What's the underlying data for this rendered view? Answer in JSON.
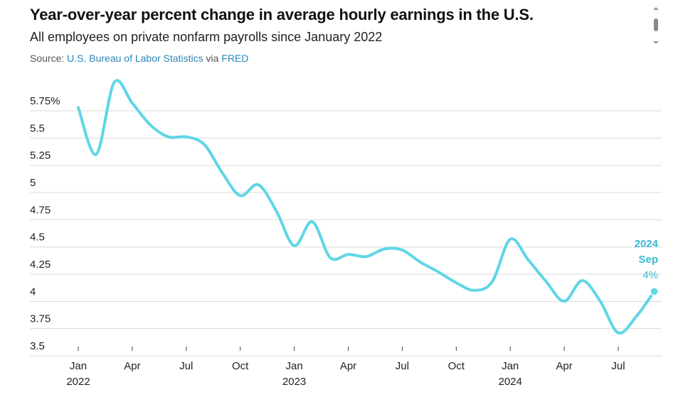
{
  "header": {
    "title": "Year-over-year percent change in average hourly earnings in the U.S.",
    "subtitle": "All employees on private nonfarm payrolls since January 2022",
    "source_prefix": "Source: ",
    "source_name": "U.S. Bureau of Labor Statistics",
    "source_via": " via ",
    "source_link2": "FRED"
  },
  "icons": {
    "menu": "vertical-scroll-menu-icon"
  },
  "colors": {
    "line": "#5fd6e6",
    "grid": "#d9d9d9",
    "accent": "#3ab9d4",
    "link": "#2a86b8"
  },
  "chart_data": {
    "type": "line",
    "ylim": [
      3.5,
      5.92
    ],
    "yticks": [
      {
        "value": 5.75,
        "label": "5.75%"
      },
      {
        "value": 5.5,
        "label": "5.5"
      },
      {
        "value": 5.25,
        "label": "5.25"
      },
      {
        "value": 5,
        "label": "5"
      },
      {
        "value": 4.75,
        "label": "4.75"
      },
      {
        "value": 4.5,
        "label": "4.5"
      },
      {
        "value": 4.25,
        "label": "4.25"
      },
      {
        "value": 4,
        "label": "4"
      },
      {
        "value": 3.75,
        "label": "3.75"
      },
      {
        "value": 3.5,
        "label": "3.5"
      }
    ],
    "xticks": [
      {
        "x": "2022-01",
        "label": "Jan",
        "year": "2022"
      },
      {
        "x": "2022-04",
        "label": "Apr",
        "year": ""
      },
      {
        "x": "2022-07",
        "label": "Jul",
        "year": ""
      },
      {
        "x": "2022-10",
        "label": "Oct",
        "year": ""
      },
      {
        "x": "2023-01",
        "label": "Jan",
        "year": "2023"
      },
      {
        "x": "2023-04",
        "label": "Apr",
        "year": ""
      },
      {
        "x": "2023-07",
        "label": "Jul",
        "year": ""
      },
      {
        "x": "2023-10",
        "label": "Oct",
        "year": ""
      },
      {
        "x": "2024-01",
        "label": "Jan",
        "year": "2024"
      },
      {
        "x": "2024-04",
        "label": "Apr",
        "year": ""
      },
      {
        "x": "2024-07",
        "label": "Jul",
        "year": ""
      }
    ],
    "series": [
      {
        "x": [
          "2022-01",
          "2022-02",
          "2022-03",
          "2022-04",
          "2022-05",
          "2022-06",
          "2022-07",
          "2022-08",
          "2022-09",
          "2022-10",
          "2022-11",
          "2022-12",
          "2023-01",
          "2023-02",
          "2023-03",
          "2023-04",
          "2023-05",
          "2023-06",
          "2023-07",
          "2023-08",
          "2023-09",
          "2023-10",
          "2023-11",
          "2023-12",
          "2024-01",
          "2024-02",
          "2024-03",
          "2024-04",
          "2024-05",
          "2024-06",
          "2024-07",
          "2024-08",
          "2024-09"
        ],
        "values": [
          5.69,
          5.26,
          5.92,
          5.73,
          5.53,
          5.42,
          5.42,
          5.35,
          5.09,
          4.88,
          4.98,
          4.74,
          4.42,
          4.64,
          4.31,
          4.34,
          4.32,
          4.39,
          4.38,
          4.27,
          4.18,
          4.08,
          4.01,
          4.09,
          4.48,
          4.29,
          4.09,
          3.91,
          4.1,
          3.91,
          3.62,
          3.77,
          4.0
        ]
      }
    ],
    "end_label": {
      "year": "2024",
      "month": "Sep",
      "value": "4%"
    }
  }
}
